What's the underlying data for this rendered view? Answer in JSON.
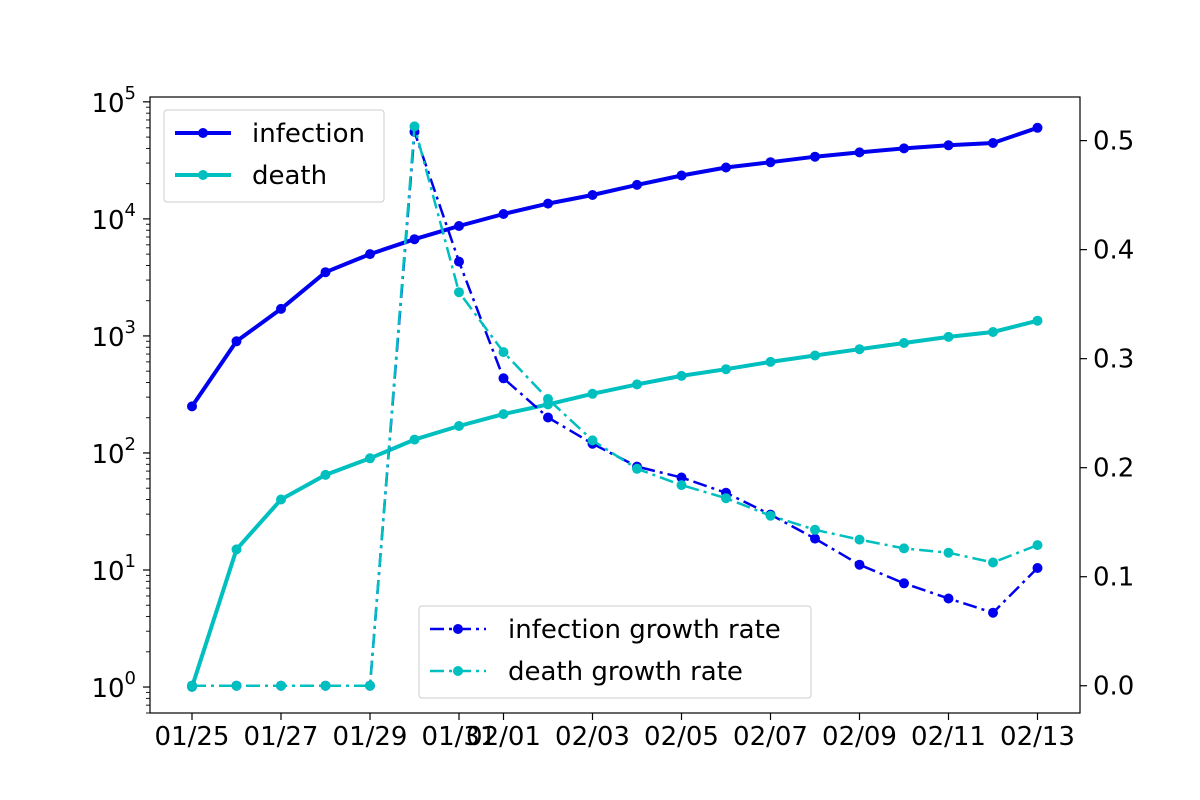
{
  "chart_data": {
    "type": "line",
    "title": "",
    "xlabel": "",
    "ylabel": "",
    "y2label": "",
    "x_labels": [
      "01/25",
      "01/27",
      "01/29",
      "01/31",
      "02/01",
      "02/03",
      "02/05",
      "02/07",
      "02/09",
      "02/11",
      "02/13"
    ],
    "x_label_day_positions": [
      0,
      2,
      4,
      6,
      7,
      9,
      11,
      13,
      15,
      17,
      19
    ],
    "x_dates": [
      "01/25",
      "01/26",
      "01/27",
      "01/28",
      "01/29",
      "01/30",
      "01/31",
      "02/01",
      "02/02",
      "02/03",
      "02/04",
      "02/05",
      "02/06",
      "02/07",
      "02/08",
      "02/09",
      "02/10",
      "02/11",
      "02/12",
      "02/13"
    ],
    "left_axis": {
      "scale": "log",
      "ylim": [
        0.6,
        110000
      ],
      "tick_labels": [
        {
          "value": 1,
          "base": "10",
          "exp": "0"
        },
        {
          "value": 10,
          "base": "10",
          "exp": "1"
        },
        {
          "value": 100,
          "base": "10",
          "exp": "2"
        },
        {
          "value": 1000,
          "base": "10",
          "exp": "3"
        },
        {
          "value": 10000,
          "base": "10",
          "exp": "4"
        },
        {
          "value": 100000,
          "base": "10",
          "exp": "5"
        }
      ]
    },
    "right_axis": {
      "scale": "linear",
      "ylim": [
        -0.025,
        0.54
      ],
      "ticks": [
        0.0,
        0.1,
        0.2,
        0.3,
        0.4,
        0.5
      ],
      "tick_labels": [
        "0.0",
        "0.1",
        "0.2",
        "0.3",
        "0.4",
        "0.5"
      ]
    },
    "series": [
      {
        "name": "infection",
        "axis": "left",
        "style": "solid",
        "color": "#0000ee",
        "values": [
          250,
          900,
          1700,
          3500,
          5000,
          6700,
          8700,
          11000,
          13500,
          16000,
          19500,
          23500,
          27500,
          30500,
          34000,
          37000,
          40000,
          42500,
          44500,
          60000
        ]
      },
      {
        "name": "death",
        "axis": "left",
        "style": "solid",
        "color": "#00bfbf",
        "values": [
          1,
          15,
          40,
          65,
          90,
          130,
          170,
          215,
          260,
          320,
          385,
          455,
          520,
          600,
          680,
          770,
          870,
          980,
          1080,
          1350
        ]
      },
      {
        "name": "infection growth rate",
        "axis": "right",
        "style": "dashdot",
        "color": "#0000ee",
        "values": [
          0.0,
          0.0,
          0.0,
          0.0,
          0.0,
          0.508,
          0.389,
          0.282,
          0.246,
          0.222,
          0.201,
          0.191,
          0.177,
          0.157,
          0.135,
          0.111,
          0.094,
          0.08,
          0.067,
          0.108
        ]
      },
      {
        "name": "death growth rate",
        "axis": "right",
        "style": "dashdot",
        "color": "#00bfbf",
        "values": [
          0.0,
          0.0,
          0.0,
          0.0,
          0.0,
          0.513,
          0.361,
          0.306,
          0.263,
          0.225,
          0.199,
          0.184,
          0.172,
          0.156,
          0.143,
          0.134,
          0.126,
          0.122,
          0.113,
          0.129
        ]
      }
    ],
    "legends": [
      {
        "position": "upper-left",
        "entries": [
          "infection",
          "death"
        ]
      },
      {
        "position": "lower-center",
        "entries": [
          "infection growth rate",
          "death growth rate"
        ]
      }
    ],
    "grid": false
  }
}
